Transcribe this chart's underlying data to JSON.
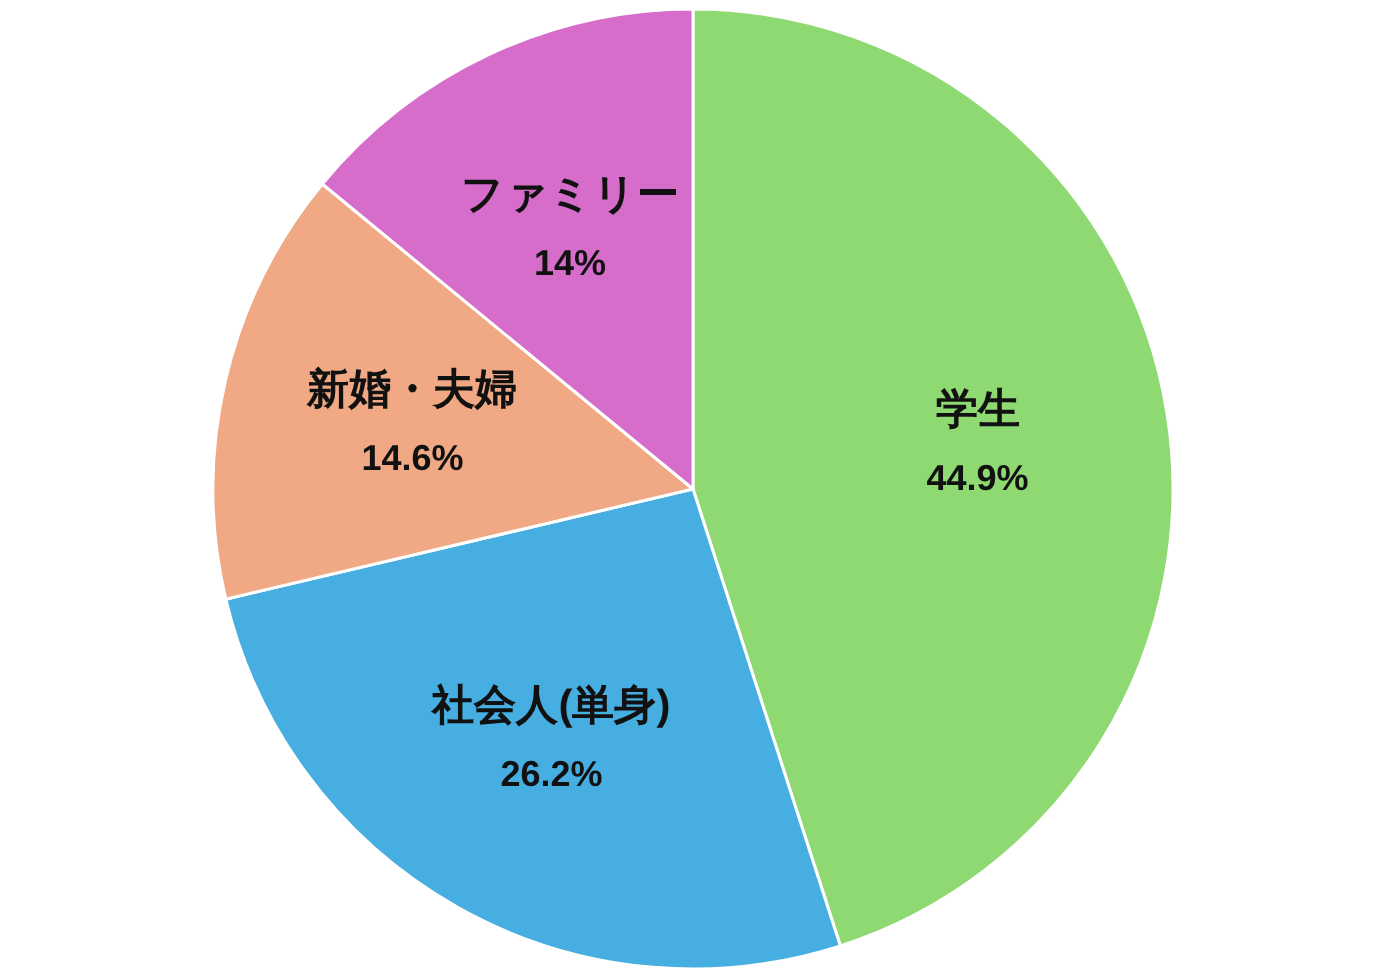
{
  "chart_data": {
    "type": "pie",
    "categories": [
      "学生",
      "社会人(単身)",
      "新婚・夫婦",
      "ファミリー"
    ],
    "values": [
      44.9,
      26.2,
      14.6,
      14
    ],
    "colors": [
      "#8ed972",
      "#46aee0",
      "#f0a984",
      "#d66dcb"
    ],
    "value_labels": [
      "44.9%",
      "26.2%",
      "14.6%",
      "14%"
    ]
  }
}
